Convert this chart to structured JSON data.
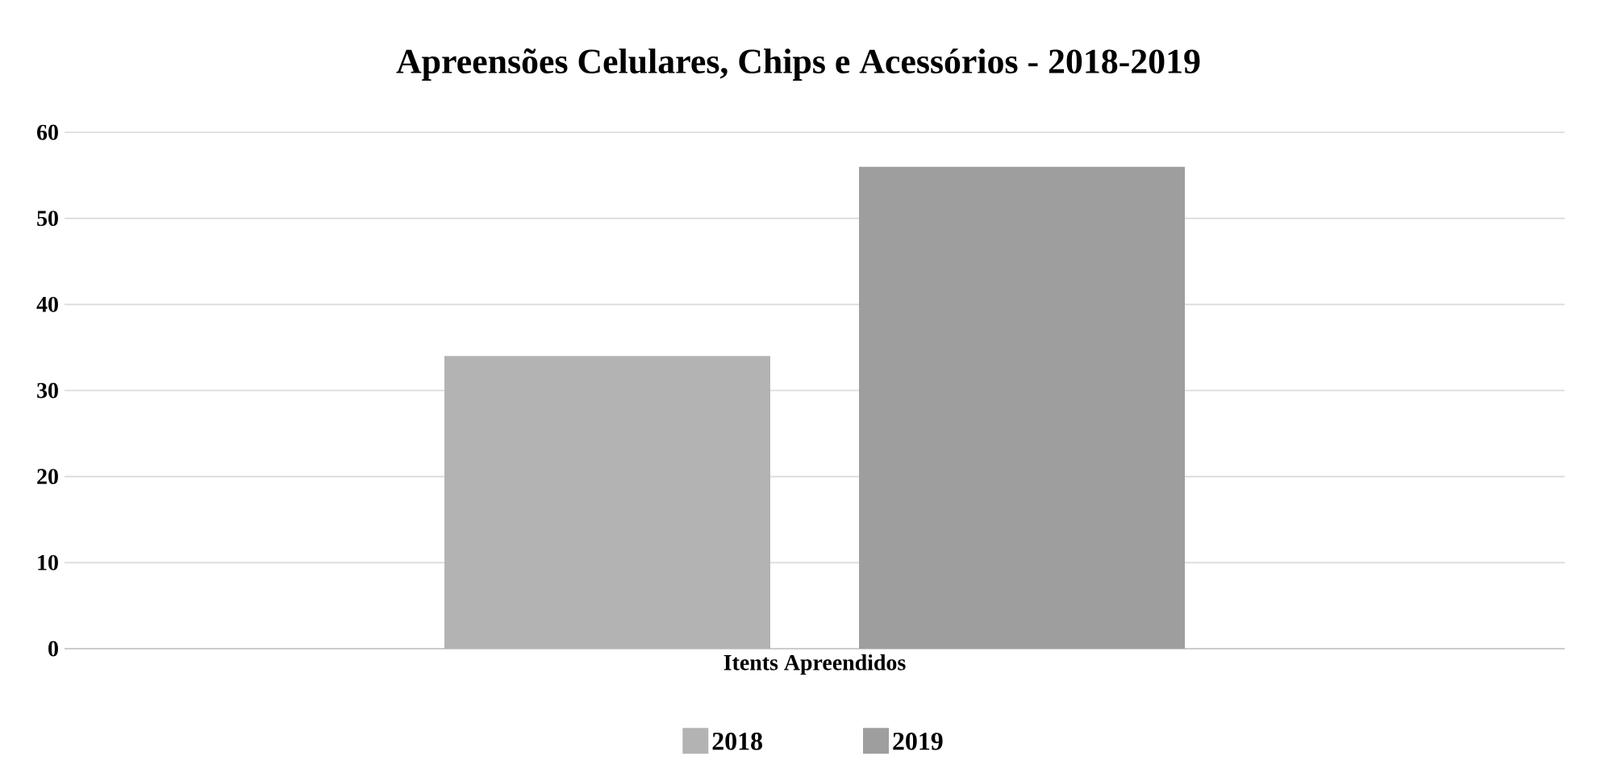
{
  "chart_data": {
    "type": "bar",
    "title": "Apreensões Celulares, Chips e Acessórios - 2018-2019",
    "categories": [
      "Itents Apreendidos"
    ],
    "series": [
      {
        "name": "2018",
        "color": "#b3b3b3",
        "values": [
          34
        ]
      },
      {
        "name": "2019",
        "color": "#9e9e9e",
        "values": [
          56
        ]
      }
    ],
    "ylim": [
      0,
      60
    ],
    "yticks": [
      0,
      10,
      20,
      30,
      40,
      50,
      60
    ],
    "grid": "y",
    "legend": "bottom"
  }
}
